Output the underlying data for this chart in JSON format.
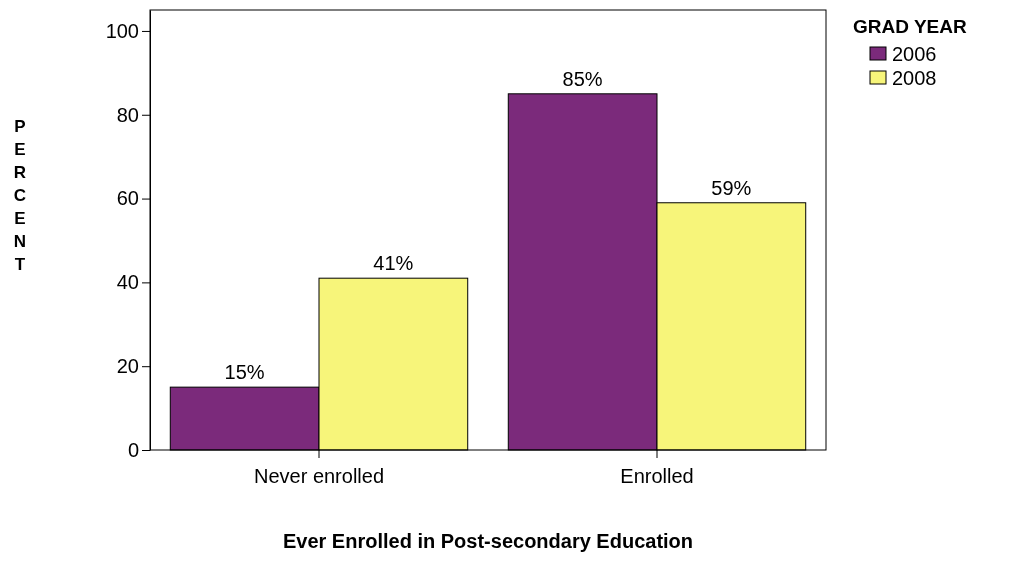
{
  "chart_data": {
    "type": "bar",
    "xlabel": "Ever Enrolled in Post-secondary Education",
    "ylabel": "PERCENT",
    "legend_title": "GRAD YEAR",
    "legend": "top right",
    "categories": [
      "Never enrolled",
      "Enrolled"
    ],
    "series": [
      {
        "name": "2006",
        "color": "#7b2a7b",
        "values": [
          15,
          85
        ],
        "value_labels": [
          "15%",
          "85%"
        ]
      },
      {
        "name": "2008",
        "color": "#f7f57a",
        "values": [
          41,
          59
        ],
        "value_labels": [
          "41%",
          "59%"
        ]
      }
    ],
    "ylim": [
      0,
      105
    ],
    "yticks": [
      0,
      20,
      40,
      60,
      80,
      100
    ]
  }
}
